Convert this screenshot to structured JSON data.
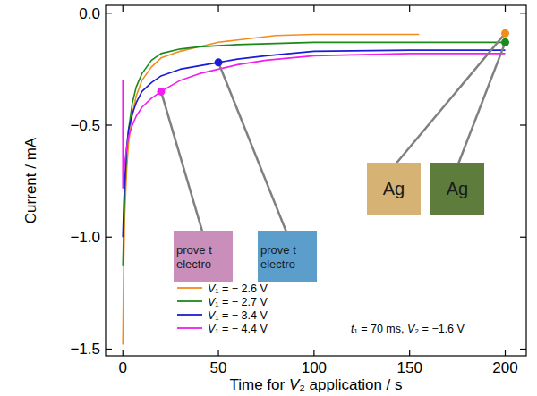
{
  "chart_data": {
    "type": "line",
    "x_label": "Time for V₂ application / s",
    "y_label": "Current / mA",
    "annotation": "t₁ = 70 ms, V₂ = −1.6 V",
    "xlim": [
      -9,
      211
    ],
    "ylim": [
      -1.53,
      0.035
    ],
    "xticks": [
      0,
      50,
      100,
      150,
      200
    ],
    "yticks": [
      {
        "value": 0,
        "label": "0.0"
      },
      {
        "value": -0.5,
        "label": "−0.5"
      },
      {
        "value": -1,
        "label": "−1.0"
      },
      {
        "value": -1.5,
        "label": "−1.5"
      }
    ],
    "grid": false,
    "legend": "lower left",
    "series": [
      {
        "name": "V₁ = − 2.6 V",
        "color": "#f28c1e",
        "x": [
          0,
          0.5,
          1,
          2,
          3,
          5,
          7,
          10,
          15,
          20,
          30,
          40,
          50,
          60,
          70,
          80,
          100,
          120,
          155
        ],
        "values": [
          -1.48,
          -1.1,
          -0.9,
          -0.7,
          -0.58,
          -0.45,
          -0.37,
          -0.3,
          -0.24,
          -0.2,
          -0.17,
          -0.15,
          -0.13,
          -0.12,
          -0.11,
          -0.1,
          -0.095,
          -0.095,
          -0.095
        ],
        "photo": {
          "x": 200,
          "y": -0.09,
          "color": "#d6b274",
          "lines": [
            "Ag"
          ]
        }
      },
      {
        "name": "V₁ = − 2.7 V",
        "color": "#1a8a1a",
        "x": [
          0,
          0.5,
          1,
          2,
          3,
          5,
          7,
          10,
          15,
          20,
          30,
          40,
          50,
          60,
          80,
          100,
          150,
          200
        ],
        "values": [
          -1.13,
          -0.95,
          -0.8,
          -0.62,
          -0.52,
          -0.4,
          -0.33,
          -0.27,
          -0.21,
          -0.18,
          -0.16,
          -0.15,
          -0.145,
          -0.14,
          -0.135,
          -0.13,
          -0.13,
          -0.13
        ],
        "photo": {
          "x": 200,
          "y": -0.13,
          "color": "#5e7d3c",
          "lines": [
            "Ag"
          ]
        }
      },
      {
        "name": "V₁ = − 3.4 V",
        "color": "#1c1cd6",
        "x": [
          0,
          0.5,
          1,
          2,
          3,
          5,
          7,
          10,
          15,
          20,
          30,
          40,
          50,
          60,
          75,
          100,
          150,
          200
        ],
        "values": [
          -1.0,
          -0.85,
          -0.75,
          -0.6,
          -0.52,
          -0.45,
          -0.4,
          -0.35,
          -0.31,
          -0.28,
          -0.25,
          -0.235,
          -0.22,
          -0.205,
          -0.19,
          -0.17,
          -0.165,
          -0.165
        ],
        "photo": {
          "x": 50,
          "y": -0.22,
          "color": "#5c9ecb",
          "lines": [
            "prove t",
            "electro"
          ]
        }
      },
      {
        "name": "V₁ = − 4.4 V",
        "color": "#f01ef0",
        "x": [
          0,
          0,
          0.5,
          1,
          2,
          3,
          5,
          7,
          10,
          15,
          20,
          30,
          40,
          50,
          60,
          75,
          100,
          150,
          200
        ],
        "values": [
          -0.3,
          -0.78,
          -0.72,
          -0.67,
          -0.6,
          -0.55,
          -0.5,
          -0.46,
          -0.42,
          -0.38,
          -0.35,
          -0.3,
          -0.27,
          -0.25,
          -0.23,
          -0.21,
          -0.19,
          -0.18,
          -0.18
        ],
        "photo": {
          "x": 20,
          "y": -0.35,
          "color": "#c98fba",
          "lines": [
            "prove t",
            "electro"
          ]
        }
      }
    ]
  }
}
